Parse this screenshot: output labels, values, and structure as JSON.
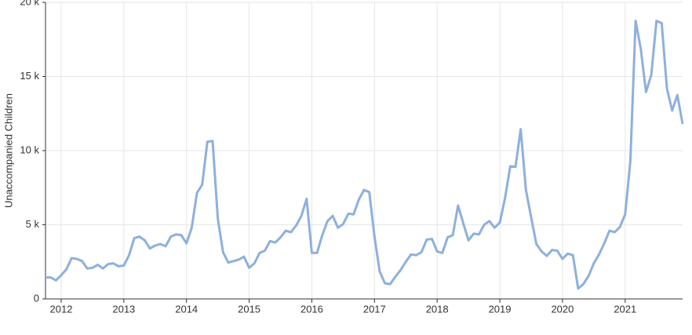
{
  "chart_data": {
    "type": "line",
    "y_label": "Unaccompanied Children",
    "x": [
      2011.75,
      2011.8333,
      2011.9167,
      2012,
      2012.0833,
      2012.1667,
      2012.25,
      2012.3333,
      2012.4167,
      2012.5,
      2012.5833,
      2012.6667,
      2012.75,
      2012.8333,
      2012.9167,
      2013,
      2013.0833,
      2013.1667,
      2013.25,
      2013.3333,
      2013.4167,
      2013.5,
      2013.5833,
      2013.6667,
      2013.75,
      2013.8333,
      2013.9167,
      2014,
      2014.0833,
      2014.1667,
      2014.25,
      2014.3333,
      2014.4167,
      2014.5,
      2014.5833,
      2014.6667,
      2014.75,
      2014.8333,
      2014.9167,
      2015,
      2015.0833,
      2015.1667,
      2015.25,
      2015.3333,
      2015.4167,
      2015.5,
      2015.5833,
      2015.6667,
      2015.75,
      2015.8333,
      2015.9167,
      2016,
      2016.0833,
      2016.1667,
      2016.25,
      2016.3333,
      2016.4167,
      2016.5,
      2016.5833,
      2016.6667,
      2016.75,
      2016.8333,
      2016.9167,
      2017,
      2017.0833,
      2017.1667,
      2017.25,
      2017.3333,
      2017.4167,
      2017.5,
      2017.5833,
      2017.6667,
      2017.75,
      2017.8333,
      2017.9167,
      2018,
      2018.0833,
      2018.1667,
      2018.25,
      2018.3333,
      2018.4167,
      2018.5,
      2018.5833,
      2018.6667,
      2018.75,
      2018.8333,
      2018.9167,
      2019,
      2019.0833,
      2019.1667,
      2019.25,
      2019.3333,
      2019.4167,
      2019.5,
      2019.5833,
      2019.6667,
      2019.75,
      2019.8333,
      2019.9167,
      2020,
      2020.0833,
      2020.1667,
      2020.25,
      2020.3333,
      2020.4167,
      2020.5,
      2020.5833,
      2020.6667,
      2020.75,
      2020.8333,
      2020.9167,
      2021,
      2021.0833,
      2021.1667,
      2021.25,
      2021.3333,
      2021.4167,
      2021.5,
      2021.5833,
      2021.6667,
      2021.75,
      2021.8333,
      2021.9167
    ],
    "values": [
      1.45,
      1.45,
      1.25,
      1.6,
      2.0,
      2.75,
      2.7,
      2.55,
      2.05,
      2.1,
      2.3,
      2.05,
      2.35,
      2.4,
      2.2,
      2.25,
      2.95,
      4.1,
      4.2,
      3.95,
      3.4,
      3.6,
      3.7,
      3.55,
      4.2,
      4.35,
      4.3,
      3.75,
      4.8,
      7.15,
      7.7,
      10.6,
      10.65,
      5.4,
      3.15,
      2.45,
      2.55,
      2.65,
      2.85,
      2.1,
      2.4,
      3.1,
      3.25,
      3.9,
      3.8,
      4.15,
      4.6,
      4.5,
      4.95,
      5.6,
      6.75,
      3.1,
      3.1,
      4.3,
      5.25,
      5.6,
      4.8,
      5.05,
      5.75,
      5.7,
      6.7,
      7.35,
      7.2,
      4.2,
      1.85,
      1.05,
      1.0,
      1.5,
      1.95,
      2.5,
      3.0,
      2.95,
      3.15,
      4.0,
      4.05,
      3.2,
      3.1,
      4.15,
      4.3,
      6.3,
      5.1,
      3.95,
      4.4,
      4.35,
      5.0,
      5.25,
      4.8,
      5.15,
      6.8,
      8.95,
      8.9,
      11.45,
      7.35,
      5.5,
      3.7,
      3.2,
      2.9,
      3.3,
      3.25,
      2.7,
      3.05,
      2.95,
      0.7,
      1.0,
      1.55,
      2.4,
      3.0,
      3.75,
      4.6,
      4.5,
      4.85,
      5.7,
      9.3,
      18.75,
      16.85,
      13.95,
      15.1,
      18.75,
      18.6,
      14.2,
      12.7,
      13.75,
      11.8
    ],
    "color": "#8eb0dc",
    "xlim": [
      2011.75,
      2021.9167
    ],
    "xticks": [
      2012,
      2013,
      2014,
      2015,
      2016,
      2017,
      2018,
      2019,
      2020,
      2021
    ],
    "ylim": [
      0,
      20
    ],
    "yticks": [
      0,
      {
        "value": 5,
        "label": "5 k"
      },
      {
        "value": 10,
        "label": "10 k"
      },
      {
        "value": 15,
        "label": "15 k"
      },
      {
        "value": 20,
        "label": "20 k"
      }
    ],
    "grid": true
  }
}
